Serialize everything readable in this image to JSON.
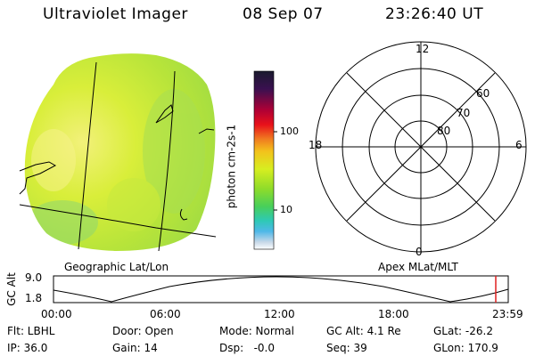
{
  "header": {
    "instrument": "Ultraviolet Imager",
    "date": "08 Sep 07",
    "time": "23:26:40 UT"
  },
  "colorbar": {
    "unit_label": "photon cm-2s-1",
    "ticks": [
      "100",
      "10"
    ],
    "stops": [
      "#1a1a2e",
      "#3a1050",
      "#b00035",
      "#e8101a",
      "#f07a20",
      "#f3c21c",
      "#d7ee20",
      "#8fdc2a",
      "#48cf5a",
      "#2ec9b5",
      "#4fb8e8",
      "#c7d8e8",
      "#ffffff"
    ]
  },
  "polar_plot": {
    "mlt_labels": {
      "top": "12",
      "left": "18",
      "right": "6",
      "bottom": "0"
    },
    "lat_labels": [
      "60",
      "70",
      "80"
    ]
  },
  "image_panel": {
    "left_caption": "Geographic Lat/Lon",
    "right_caption": "Apex MLat/MLT"
  },
  "altitude_plot": {
    "ylabel": "GC Alt",
    "yticks": [
      "9.0",
      "1.8"
    ],
    "xticks": [
      "00:00",
      "06:00",
      "12:00",
      "18:00",
      "23:59"
    ]
  },
  "info": {
    "flt": "Flt: LBHL",
    "ip": "IP: 36.0",
    "door": "Door: Open",
    "gain": "Gain: 14",
    "mode": "Mode: Normal",
    "dsp": "Dsp:   -0.0",
    "gc_alt": "GC Alt: 4.1 Re",
    "seq": "Seq: 39",
    "glat": "GLat: -26.2",
    "glon": "GLon: 170.9"
  }
}
